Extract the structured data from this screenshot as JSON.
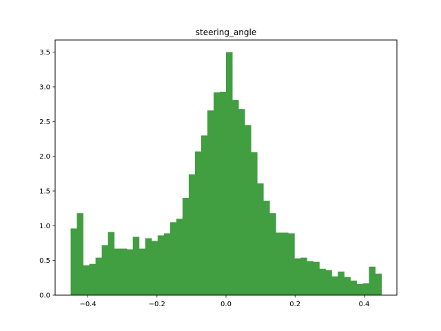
{
  "chart_data": {
    "type": "bar",
    "title": "steering_angle",
    "xlabel": "",
    "ylabel": "",
    "xlim": [
      -0.495,
      0.495
    ],
    "ylim": [
      0,
      3.675
    ],
    "grid": false,
    "bar_color": "#419e41",
    "bin_start": -0.45,
    "bin_width": 0.018,
    "values": [
      0.96,
      1.18,
      0.43,
      0.45,
      0.54,
      0.72,
      0.91,
      0.67,
      0.67,
      0.66,
      0.84,
      0.67,
      0.82,
      0.78,
      0.86,
      0.89,
      1.05,
      1.1,
      1.4,
      1.74,
      2.07,
      2.3,
      2.66,
      2.92,
      2.93,
      3.5,
      2.81,
      2.68,
      2.45,
      2.06,
      1.61,
      1.36,
      1.18,
      0.9,
      0.9,
      0.89,
      0.53,
      0.54,
      0.49,
      0.48,
      0.38,
      0.36,
      0.27,
      0.34,
      0.26,
      0.21,
      0.16,
      0.17,
      0.41,
      0.31
    ],
    "x_ticks": [
      -0.4,
      -0.2,
      0.0,
      0.2,
      0.4
    ],
    "x_tick_labels": [
      "−0.4",
      "−0.2",
      "0.0",
      "0.2",
      "0.4"
    ],
    "y_ticks": [
      0.0,
      0.5,
      1.0,
      1.5,
      2.0,
      2.5,
      3.0,
      3.5
    ],
    "y_tick_labels": [
      "0.0",
      "0.5",
      "1.0",
      "1.5",
      "2.0",
      "2.5",
      "3.0",
      "3.5"
    ]
  }
}
